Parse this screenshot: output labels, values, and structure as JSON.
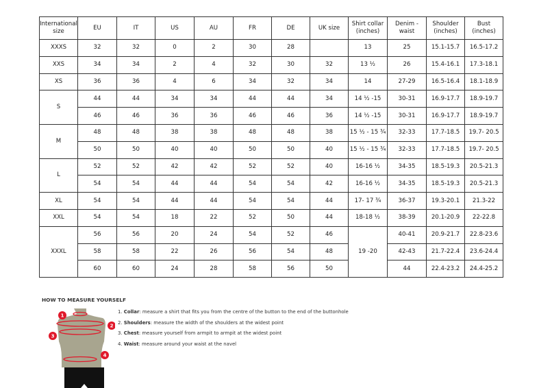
{
  "headers": [
    "International size",
    "EU",
    "IT",
    "US",
    "AU",
    "FR",
    "DE",
    "UK size",
    "Shirt collar (inches)",
    "Denim - waist",
    "Shoulder (inches)",
    "Bust (inches)"
  ],
  "groups": [
    {
      "size": "XXXS",
      "rows": [
        [
          "32",
          "32",
          "0",
          "2",
          "30",
          "28",
          "",
          "13",
          "25",
          "15.1-15.7",
          "16.5-17.2"
        ]
      ]
    },
    {
      "size": "XXS",
      "rows": [
        [
          "34",
          "34",
          "2",
          "4",
          "32",
          "30",
          "32",
          "13 ½",
          "26",
          "15.4-16.1",
          "17.3-18.1"
        ]
      ]
    },
    {
      "size": "XS",
      "rows": [
        [
          "36",
          "36",
          "4",
          "6",
          "34",
          "32",
          "34",
          "14",
          "27-29",
          "16.5-16.4",
          "18.1-18.9"
        ]
      ]
    },
    {
      "size": "S",
      "rows": [
        [
          "44",
          "44",
          "34",
          "34",
          "44",
          "44",
          "34",
          "14 ½ -15",
          "30-31",
          "16.9-17.7",
          "18.9-19.7"
        ],
        [
          "46",
          "46",
          "36",
          "36",
          "46",
          "46",
          "36",
          "14 ½ -15",
          "30-31",
          "16.9-17.7",
          "18.9-19.7"
        ]
      ]
    },
    {
      "size": "M",
      "rows": [
        [
          "48",
          "48",
          "38",
          "38",
          "48",
          "48",
          "38",
          "15 ½ - 15 ¾",
          "32-33",
          "17.7-18.5",
          "19.7- 20.5"
        ],
        [
          "50",
          "50",
          "40",
          "40",
          "50",
          "50",
          "40",
          "15 ½ - 15 ¾",
          "32-33",
          "17.7-18.5",
          "19.7- 20.5"
        ]
      ]
    },
    {
      "size": "L",
      "rows": [
        [
          "52",
          "52",
          "42",
          "42",
          "52",
          "52",
          "40",
          "16-16 ½",
          "34-35",
          "18.5-19.3",
          "20.5-21.3"
        ],
        [
          "54",
          "54",
          "44",
          "44",
          "54",
          "54",
          "42",
          "16-16 ½",
          "34-35",
          "18.5-19.3",
          "20.5-21.3"
        ]
      ]
    },
    {
      "size": "XL",
      "rows": [
        [
          "54",
          "54",
          "44",
          "44",
          "54",
          "54",
          "44",
          "17- 17 ¾",
          "36-37",
          "19.3-20.1",
          "21.3-22"
        ]
      ]
    },
    {
      "size": "XXL",
      "rows": [
        [
          "54",
          "54",
          "18",
          "22",
          "52",
          "50",
          "44",
          "18-18 ½",
          "38-39",
          "20.1-20.9",
          "22-22.8"
        ]
      ]
    },
    {
      "size": "XXXL",
      "collar_shared": "19 -20",
      "rows": [
        [
          "56",
          "56",
          "20",
          "24",
          "54",
          "52",
          "46",
          "",
          "40-41",
          "20.9-21.7",
          "22.8-23.6"
        ],
        [
          "58",
          "58",
          "22",
          "26",
          "56",
          "54",
          "48",
          "",
          "42-43",
          "21.7-22.4",
          "23.6-24.4"
        ],
        [
          "60",
          "60",
          "24",
          "28",
          "58",
          "56",
          "50",
          "",
          "44",
          "22.4-23.2",
          "24.4-25.2"
        ]
      ]
    }
  ],
  "howto": {
    "title": "HOW TO MEASURE YOURSELF",
    "steps": [
      {
        "num": "1.",
        "term": "Collar",
        "text": ": measure a shirt that fits you from the centre of the button to the end of the buttonhole"
      },
      {
        "num": "2.",
        "term": "Shoulders",
        "text": ": measure the width of the shoulders at the widest point"
      },
      {
        "num": "3.",
        "term": "Chest",
        "text": ": measure yourself from armpit to armpit at the widest point"
      },
      {
        "num": "4.",
        "term": "Waist",
        "text": ": measure around your waist at the navel"
      }
    ],
    "markers": [
      "1",
      "2",
      "3",
      "4"
    ],
    "colors": {
      "marker": "#e0192b",
      "torso": "#a8a58f",
      "shorts": "#111111"
    }
  }
}
